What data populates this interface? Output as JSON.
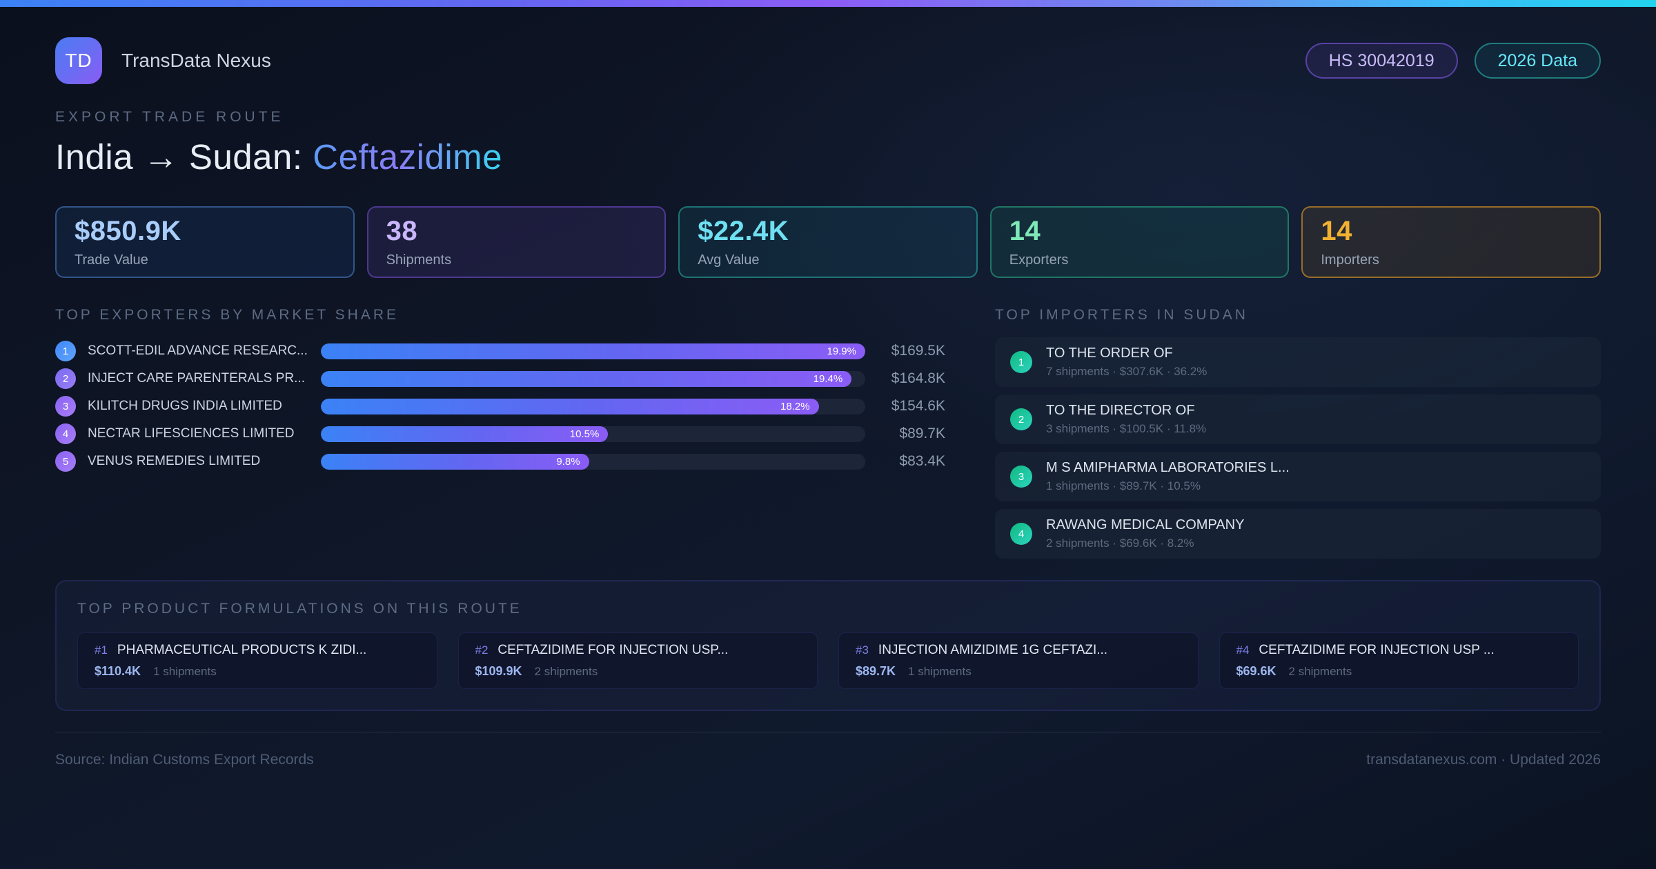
{
  "brand": {
    "logo": "TD",
    "name": "TransData Nexus"
  },
  "badges": {
    "hs_code": "HS 30042019",
    "year": "2026 Data"
  },
  "route": {
    "eyebrow": "EXPORT TRADE ROUTE",
    "title_prefix": "India → Sudan: ",
    "title_highlight": "Ceftazidime"
  },
  "stats": [
    {
      "value": "$850.9K",
      "label": "Trade Value",
      "accent": "#a9cdfa",
      "border": "rgba(96,165,250,0.42)",
      "bg": "rgba(59,130,246,0.10)"
    },
    {
      "value": "38",
      "label": "Shipments",
      "accent": "#c9b6fb",
      "border": "rgba(139,92,246,0.45)",
      "bg": "rgba(139,92,246,0.12)"
    },
    {
      "value": "$22.4K",
      "label": "Avg Value",
      "accent": "#6fe0f2",
      "border": "rgba(45,212,191,0.45)",
      "bg": "rgba(34,211,238,0.08)"
    },
    {
      "value": "14",
      "label": "Exporters",
      "accent": "#7fe8b8",
      "border": "rgba(52,211,153,0.45)",
      "bg": "rgba(16,185,129,0.10)"
    },
    {
      "value": "14",
      "label": "Importers",
      "accent": "#f2b231",
      "border": "rgba(245,166,35,0.55)",
      "bg": "rgba(245,158,11,0.09)"
    }
  ],
  "exporters": {
    "title": "TOP EXPORTERS BY MARKET SHARE",
    "max_pct": 19.9,
    "items": [
      {
        "rank": "1",
        "name": "SCOTT-EDIL ADVANCE RESEARC...",
        "pct": 19.9,
        "share_label": "19.9%",
        "value": "$169.5K",
        "badge": [
          "#3f86f8",
          "#60a5fa"
        ]
      },
      {
        "rank": "2",
        "name": "INJECT CARE PARENTERALS PR...",
        "pct": 19.4,
        "share_label": "19.4%",
        "value": "$164.8K",
        "badge": [
          "#7a6df2",
          "#9a7cf4"
        ]
      },
      {
        "rank": "3",
        "name": "KILITCH DRUGS INDIA LIMITED",
        "pct": 18.2,
        "share_label": "18.2%",
        "value": "$154.6K",
        "badge": [
          "#8a63f2",
          "#a77ef6"
        ]
      },
      {
        "rank": "4",
        "name": "NECTAR LIFESCIENCES LIMITED",
        "pct": 10.5,
        "share_label": "10.5%",
        "value": "$89.7K",
        "badge": [
          "#8a63f2",
          "#a77ef6"
        ]
      },
      {
        "rank": "5",
        "name": "VENUS REMEDIES LIMITED",
        "pct": 9.8,
        "share_label": "9.8%",
        "value": "$83.4K",
        "badge": [
          "#8a63f2",
          "#a77ef6"
        ]
      }
    ]
  },
  "importers": {
    "title": "TOP IMPORTERS IN SUDAN",
    "items": [
      {
        "rank": "1",
        "name": "TO THE ORDER OF",
        "detail": "7 shipments · $307.6K · 36.2%"
      },
      {
        "rank": "2",
        "name": "TO THE DIRECTOR OF",
        "detail": "3 shipments · $100.5K · 11.8%"
      },
      {
        "rank": "3",
        "name": "M S AMIPHARMA LABORATORIES L...",
        "detail": "1 shipments · $89.7K · 10.5%"
      },
      {
        "rank": "4",
        "name": "RAWANG MEDICAL COMPANY",
        "detail": "2 shipments · $69.6K · 8.2%"
      }
    ]
  },
  "products": {
    "title": "TOP PRODUCT FORMULATIONS ON THIS ROUTE",
    "items": [
      {
        "rank": "#1",
        "name": "PHARMACEUTICAL PRODUCTS K ZIDI...",
        "value": "$110.4K",
        "shipments": "1 shipments"
      },
      {
        "rank": "#2",
        "name": "CEFTAZIDIME FOR INJECTION USP...",
        "value": "$109.9K",
        "shipments": "2 shipments"
      },
      {
        "rank": "#3",
        "name": "INJECTION AMIZIDIME 1G CEFTAZI...",
        "value": "$89.7K",
        "shipments": "1 shipments"
      },
      {
        "rank": "#4",
        "name": "CEFTAZIDIME FOR INJECTION USP ...",
        "value": "$69.6K",
        "shipments": "2 shipments"
      }
    ]
  },
  "footer": {
    "source": "Source: Indian Customs Export Records",
    "site": "transdatanexus.com · Updated 2026"
  }
}
